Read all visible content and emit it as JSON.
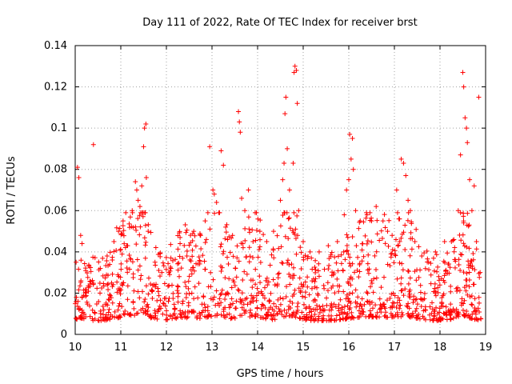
{
  "chart_data": {
    "type": "scatter",
    "title": "Day 111 of 2022, Rate Of TEC Index for receiver brst",
    "xlabel": "GPS time / hours",
    "ylabel": "ROTI / TECUs",
    "xlim": [
      10,
      19
    ],
    "ylim": [
      0,
      0.14
    ],
    "xticks": [
      10,
      11,
      12,
      13,
      14,
      15,
      16,
      17,
      18,
      19
    ],
    "xtick_labels": [
      "10",
      "11",
      "12",
      "13",
      "14",
      "15",
      "16",
      "17",
      "18",
      "19"
    ],
    "yticks": [
      0,
      0.02,
      0.04,
      0.06,
      0.08,
      0.1,
      0.12,
      0.14
    ],
    "ytick_labels": [
      "0",
      "0.02",
      "0.04",
      "0.06",
      "0.08",
      "0.1",
      "0.12",
      "0.14"
    ],
    "grid": true,
    "marker": "+",
    "color": "#ff0000",
    "series": [
      {
        "name": "ROTI",
        "points": [
          [
            10.02,
            0.035
          ],
          [
            10.05,
            0.081
          ],
          [
            10.08,
            0.076
          ],
          [
            10.12,
            0.048
          ],
          [
            10.15,
            0.044
          ],
          [
            10.4,
            0.092
          ],
          [
            10.55,
            0.032
          ],
          [
            10.7,
            0.038
          ],
          [
            10.85,
            0.045
          ],
          [
            10.95,
            0.05
          ],
          [
            11.05,
            0.055
          ],
          [
            11.15,
            0.043
          ],
          [
            11.25,
            0.06
          ],
          [
            11.32,
            0.074
          ],
          [
            11.35,
            0.07
          ],
          [
            11.38,
            0.065
          ],
          [
            11.42,
            0.062
          ],
          [
            11.46,
            0.072
          ],
          [
            11.5,
            0.091
          ],
          [
            11.52,
            0.1
          ],
          [
            11.55,
            0.102
          ],
          [
            11.56,
            0.076
          ],
          [
            11.6,
            0.05
          ],
          [
            11.75,
            0.035
          ],
          [
            11.9,
            0.03
          ],
          [
            12.1,
            0.032
          ],
          [
            12.3,
            0.044
          ],
          [
            12.45,
            0.038
          ],
          [
            12.6,
            0.05
          ],
          [
            12.75,
            0.048
          ],
          [
            12.85,
            0.055
          ],
          [
            12.95,
            0.091
          ],
          [
            13.02,
            0.07
          ],
          [
            13.05,
            0.068
          ],
          [
            13.1,
            0.064
          ],
          [
            13.2,
            0.089
          ],
          [
            13.25,
            0.082
          ],
          [
            13.3,
            0.052
          ],
          [
            13.45,
            0.048
          ],
          [
            13.58,
            0.108
          ],
          [
            13.6,
            0.103
          ],
          [
            13.62,
            0.098
          ],
          [
            13.65,
            0.066
          ],
          [
            13.72,
            0.06
          ],
          [
            13.8,
            0.07
          ],
          [
            13.9,
            0.045
          ],
          [
            14.05,
            0.05
          ],
          [
            14.2,
            0.045
          ],
          [
            14.35,
            0.05
          ],
          [
            14.5,
            0.065
          ],
          [
            14.55,
            0.075
          ],
          [
            14.58,
            0.083
          ],
          [
            14.6,
            0.107
          ],
          [
            14.62,
            0.115
          ],
          [
            14.65,
            0.09
          ],
          [
            14.7,
            0.07
          ],
          [
            14.78,
            0.083
          ],
          [
            14.8,
            0.127
          ],
          [
            14.82,
            0.13
          ],
          [
            14.85,
            0.128
          ],
          [
            14.87,
            0.112
          ],
          [
            14.9,
            0.06
          ],
          [
            15.0,
            0.045
          ],
          [
            15.15,
            0.04
          ],
          [
            15.35,
            0.04
          ],
          [
            15.55,
            0.043
          ],
          [
            15.75,
            0.045
          ],
          [
            15.9,
            0.058
          ],
          [
            15.95,
            0.07
          ],
          [
            16.0,
            0.075
          ],
          [
            16.02,
            0.097
          ],
          [
            16.05,
            0.085
          ],
          [
            16.08,
            0.095
          ],
          [
            16.1,
            0.08
          ],
          [
            16.15,
            0.06
          ],
          [
            16.25,
            0.055
          ],
          [
            16.4,
            0.058
          ],
          [
            16.5,
            0.055
          ],
          [
            16.6,
            0.062
          ],
          [
            16.75,
            0.055
          ],
          [
            16.85,
            0.05
          ],
          [
            16.95,
            0.048
          ],
          [
            17.05,
            0.07
          ],
          [
            17.15,
            0.085
          ],
          [
            17.2,
            0.083
          ],
          [
            17.25,
            0.077
          ],
          [
            17.3,
            0.065
          ],
          [
            17.35,
            0.06
          ],
          [
            17.45,
            0.045
          ],
          [
            17.6,
            0.038
          ],
          [
            17.75,
            0.035
          ],
          [
            17.9,
            0.04
          ],
          [
            18.1,
            0.045
          ],
          [
            18.25,
            0.045
          ],
          [
            18.4,
            0.06
          ],
          [
            18.45,
            0.087
          ],
          [
            18.5,
            0.127
          ],
          [
            18.52,
            0.12
          ],
          [
            18.55,
            0.105
          ],
          [
            18.58,
            0.1
          ],
          [
            18.6,
            0.093
          ],
          [
            18.65,
            0.075
          ],
          [
            18.7,
            0.06
          ],
          [
            18.75,
            0.072
          ],
          [
            18.8,
            0.045
          ],
          [
            18.85,
            0.115
          ],
          [
            18.88,
            0.03
          ]
        ]
      }
    ]
  }
}
